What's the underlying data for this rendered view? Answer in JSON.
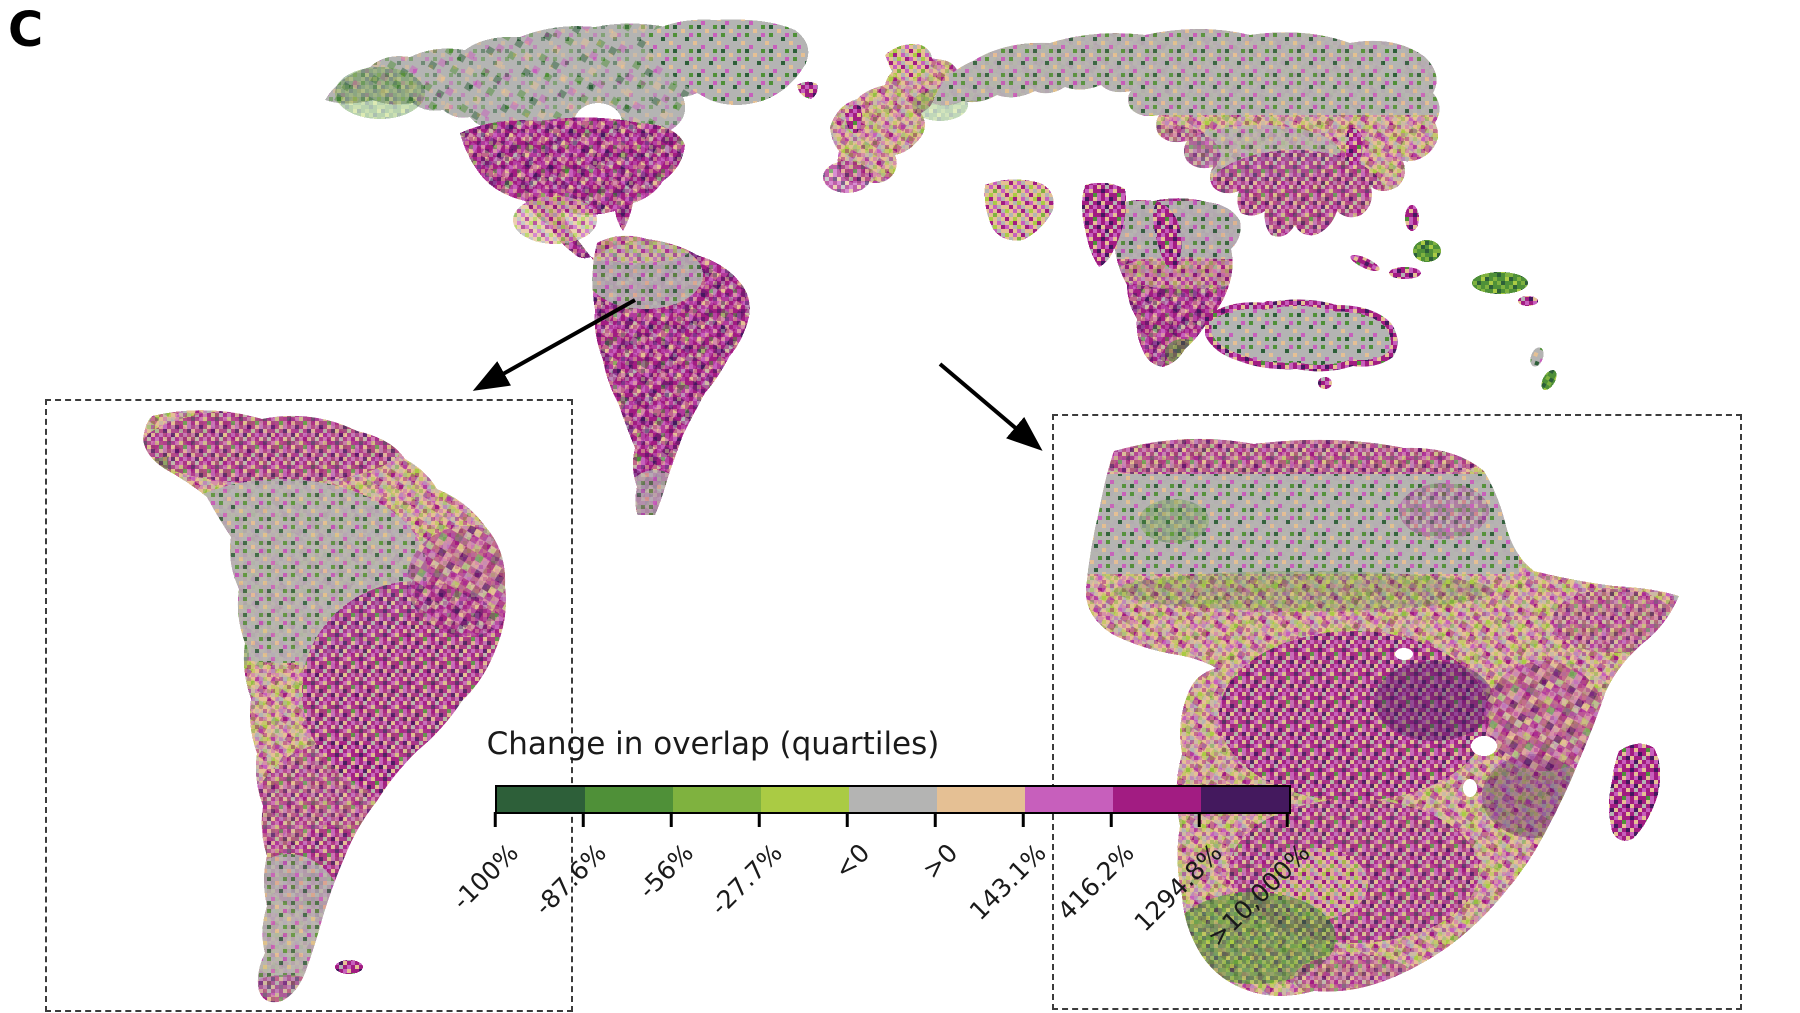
{
  "panel": {
    "label": "C"
  },
  "legend": {
    "title": "Change in overlap (quartiles)",
    "tick_labels": [
      "-100%",
      "-87.6%",
      "-56%",
      "-27.7%",
      "<0",
      ">0",
      "143.1%",
      "416.2%",
      "1294.8%",
      ">10,000%"
    ],
    "segment_colors": [
      "#2d5f39",
      "#4f9038",
      "#7fb23f",
      "#aacb44",
      "#b4b4b3",
      "#e5c094",
      "#c75fbc",
      "#a21c82",
      "#44195e"
    ]
  },
  "colors": {
    "no_data_gray": "#b4b4b3",
    "arrow_black": "#000000",
    "inset_border_gray": "#3c3c3c"
  }
}
